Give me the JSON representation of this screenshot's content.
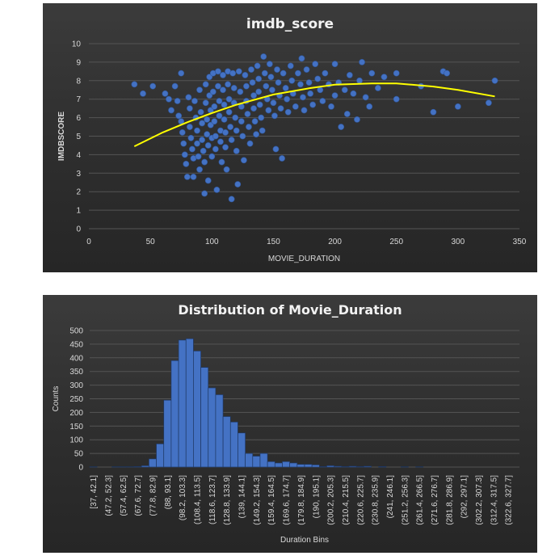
{
  "chart_data": [
    {
      "type": "scatter",
      "title": "imdb_score",
      "xlabel": "MOVIE_DURATION",
      "ylabel": "IMDBSCORE",
      "xlim": [
        0,
        350
      ],
      "ylim": [
        0,
        10
      ],
      "xticks": [
        "0",
        "50",
        "100",
        "150",
        "200",
        "250",
        "300",
        "350"
      ],
      "yticks": [
        "0",
        "1",
        "2",
        "3",
        "4",
        "5",
        "6",
        "7",
        "8",
        "9",
        "10"
      ],
      "grid": "horizontal",
      "marker_color": "#4472c4",
      "trendline": {
        "type": "polynomial",
        "color": "#ffff00",
        "points": [
          [
            37,
            4.45
          ],
          [
            60,
            5.2
          ],
          [
            80,
            5.75
          ],
          [
            100,
            6.25
          ],
          [
            120,
            6.7
          ],
          [
            150,
            7.25
          ],
          [
            180,
            7.6
          ],
          [
            200,
            7.78
          ],
          [
            230,
            7.85
          ],
          [
            250,
            7.85
          ],
          [
            280,
            7.68
          ],
          [
            300,
            7.5
          ],
          [
            330,
            7.15
          ]
        ]
      },
      "points": [
        [
          37,
          7.8
        ],
        [
          44,
          7.3
        ],
        [
          52,
          7.7
        ],
        [
          62,
          7.3
        ],
        [
          65,
          7.0
        ],
        [
          67,
          6.4
        ],
        [
          70,
          7.7
        ],
        [
          72,
          6.9
        ],
        [
          73,
          6.1
        ],
        [
          75,
          5.8
        ],
        [
          75,
          8.4
        ],
        [
          76,
          5.2
        ],
        [
          77,
          4.6
        ],
        [
          78,
          4.0
        ],
        [
          79,
          3.5
        ],
        [
          80,
          2.8
        ],
        [
          81,
          7.1
        ],
        [
          82,
          6.5
        ],
        [
          82,
          5.5
        ],
        [
          83,
          4.9
        ],
        [
          84,
          4.3
        ],
        [
          85,
          3.8
        ],
        [
          85,
          2.8
        ],
        [
          86,
          6.9
        ],
        [
          87,
          6.0
        ],
        [
          88,
          5.3
        ],
        [
          88,
          4.6
        ],
        [
          89,
          3.9
        ],
        [
          90,
          3.2
        ],
        [
          90,
          7.5
        ],
        [
          91,
          6.3
        ],
        [
          92,
          5.7
        ],
        [
          92,
          4.8
        ],
        [
          93,
          4.2
        ],
        [
          94,
          3.6
        ],
        [
          94,
          1.9
        ],
        [
          95,
          7.8
        ],
        [
          95,
          6.8
        ],
        [
          96,
          5.9
        ],
        [
          96,
          5.1
        ],
        [
          97,
          4.5
        ],
        [
          97,
          2.6
        ],
        [
          98,
          8.2
        ],
        [
          98,
          7.2
        ],
        [
          99,
          6.4
        ],
        [
          99,
          5.6
        ],
        [
          100,
          4.9
        ],
        [
          100,
          3.9
        ],
        [
          101,
          8.4
        ],
        [
          101,
          7.4
        ],
        [
          102,
          6.6
        ],
        [
          102,
          5.8
        ],
        [
          103,
          5.0
        ],
        [
          103,
          4.3
        ],
        [
          104,
          2.1
        ],
        [
          105,
          8.5
        ],
        [
          105,
          7.7
        ],
        [
          106,
          6.9
        ],
        [
          106,
          6.1
        ],
        [
          107,
          5.3
        ],
        [
          107,
          4.7
        ],
        [
          108,
          3.6
        ],
        [
          109,
          8.3
        ],
        [
          109,
          7.5
        ],
        [
          110,
          6.7
        ],
        [
          110,
          5.9
        ],
        [
          111,
          5.2
        ],
        [
          111,
          4.4
        ],
        [
          112,
          3.2
        ],
        [
          113,
          8.5
        ],
        [
          113,
          7.8
        ],
        [
          114,
          7.0
        ],
        [
          114,
          6.3
        ],
        [
          115,
          5.5
        ],
        [
          116,
          4.8
        ],
        [
          116,
          1.6
        ],
        [
          117,
          8.4
        ],
        [
          118,
          7.6
        ],
        [
          118,
          6.8
        ],
        [
          119,
          6.0
        ],
        [
          120,
          5.3
        ],
        [
          120,
          4.2
        ],
        [
          121,
          2.4
        ],
        [
          122,
          8.5
        ],
        [
          123,
          7.4
        ],
        [
          124,
          6.6
        ],
        [
          124,
          5.8
        ],
        [
          125,
          5.0
        ],
        [
          126,
          3.7
        ],
        [
          127,
          8.3
        ],
        [
          128,
          7.7
        ],
        [
          128,
          6.9
        ],
        [
          129,
          6.2
        ],
        [
          130,
          5.5
        ],
        [
          131,
          4.6
        ],
        [
          132,
          8.6
        ],
        [
          133,
          7.9
        ],
        [
          134,
          7.2
        ],
        [
          134,
          6.5
        ],
        [
          135,
          5.8
        ],
        [
          136,
          5.1
        ],
        [
          137,
          8.8
        ],
        [
          138,
          8.1
        ],
        [
          138,
          7.4
        ],
        [
          139,
          6.7
        ],
        [
          140,
          6.0
        ],
        [
          141,
          5.3
        ],
        [
          142,
          9.3
        ],
        [
          143,
          8.4
        ],
        [
          144,
          7.7
        ],
        [
          145,
          7.0
        ],
        [
          146,
          6.4
        ],
        [
          147,
          8.9
        ],
        [
          148,
          8.2
        ],
        [
          149,
          7.5
        ],
        [
          150,
          6.8
        ],
        [
          151,
          6.1
        ],
        [
          152,
          4.3
        ],
        [
          153,
          8.6
        ],
        [
          154,
          7.9
        ],
        [
          155,
          7.2
        ],
        [
          156,
          6.5
        ],
        [
          157,
          3.8
        ],
        [
          158,
          8.4
        ],
        [
          160,
          7.6
        ],
        [
          161,
          7.0
        ],
        [
          162,
          6.3
        ],
        [
          164,
          8.8
        ],
        [
          165,
          8.0
        ],
        [
          166,
          7.3
        ],
        [
          168,
          6.6
        ],
        [
          170,
          8.4
        ],
        [
          172,
          7.8
        ],
        [
          173,
          9.2
        ],
        [
          174,
          7.1
        ],
        [
          175,
          6.4
        ],
        [
          177,
          8.6
        ],
        [
          179,
          7.9
        ],
        [
          180,
          7.3
        ],
        [
          182,
          6.7
        ],
        [
          184,
          8.9
        ],
        [
          186,
          8.1
        ],
        [
          188,
          7.5
        ],
        [
          190,
          6.9
        ],
        [
          192,
          8.4
        ],
        [
          195,
          7.8
        ],
        [
          197,
          6.6
        ],
        [
          200,
          7.2
        ],
        [
          200,
          8.9
        ],
        [
          203,
          7.9
        ],
        [
          205,
          5.5
        ],
        [
          208,
          7.5
        ],
        [
          210,
          6.2
        ],
        [
          212,
          8.3
        ],
        [
          215,
          7.3
        ],
        [
          218,
          5.9
        ],
        [
          220,
          8.0
        ],
        [
          222,
          9.0
        ],
        [
          225,
          7.1
        ],
        [
          228,
          6.6
        ],
        [
          230,
          8.4
        ],
        [
          235,
          7.6
        ],
        [
          240,
          8.2
        ],
        [
          250,
          8.4
        ],
        [
          250,
          7.0
        ],
        [
          270,
          7.7
        ],
        [
          280,
          6.3
        ],
        [
          288,
          8.5
        ],
        [
          291,
          8.4
        ],
        [
          300,
          6.6
        ],
        [
          325,
          6.8
        ],
        [
          330,
          8.0
        ]
      ]
    },
    {
      "type": "bar",
      "title": "Distribution of Movie_Duration",
      "xlabel": "Duration Bins",
      "ylabel": "Counts",
      "ylim": [
        0,
        500
      ],
      "yticks": [
        "0",
        "50",
        "100",
        "150",
        "200",
        "250",
        "300",
        "350",
        "400",
        "450",
        "500"
      ],
      "grid": "horizontal",
      "bar_color": "#4472c4",
      "labeled_categories": [
        "[37, 42.1]",
        "(47.2, 52.3]",
        "(57.4, 62.5]",
        "(67.6, 72.7]",
        "(77.8, 82.9]",
        "(88, 93.1]",
        "(98.2, 103.3]",
        "(108.4, 113.5]",
        "(118.6, 123.7]",
        "(128.8, 133.9]",
        "(139, 144.1]",
        "(149.2, 154.3]",
        "(159.4, 164.5]",
        "(169.6, 174.7]",
        "(179.8, 184.9]",
        "(190, 195.1]",
        "(200.2, 205.3]",
        "(210.4, 215.5]",
        "(220.6, 225.7]",
        "(230.8, 235.9]",
        "(241, 246.1]",
        "(251.2, 256.3]",
        "(261.4, 266.5]",
        "(271.6, 276.7]",
        "(281.8, 286.9]",
        "(292, 297.1]",
        "(302.2, 307.3]",
        "(312.4, 317.5]",
        "(322.6, 327.7]"
      ],
      "values": [
        1,
        0,
        0,
        1,
        1,
        1,
        2,
        5,
        30,
        85,
        245,
        390,
        465,
        470,
        425,
        365,
        290,
        265,
        185,
        165,
        125,
        50,
        40,
        50,
        20,
        15,
        20,
        15,
        10,
        10,
        8,
        2,
        5,
        3,
        2,
        3,
        2,
        3,
        0,
        2,
        0,
        0,
        1,
        0,
        1,
        0,
        0,
        0,
        0,
        0,
        0,
        0,
        0,
        0,
        0,
        0,
        0,
        0
      ]
    }
  ]
}
